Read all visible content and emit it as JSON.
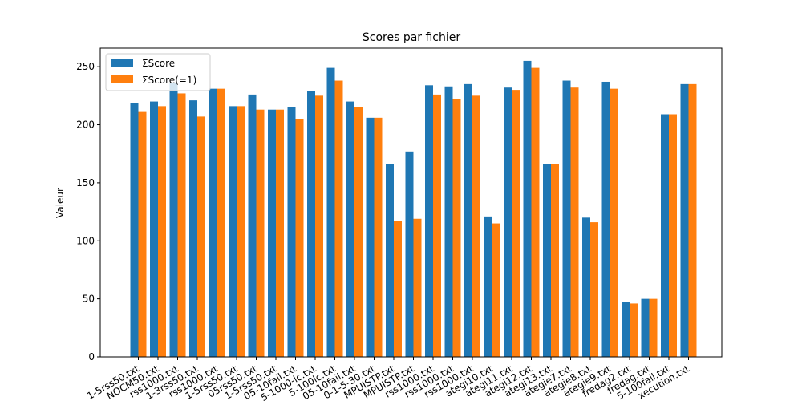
{
  "chart_data": {
    "type": "bar",
    "title": "Scores par fichier",
    "xlabel": "",
    "ylabel": "Valeur",
    "ylim": [
      0,
      266
    ],
    "yticks": [
      0,
      50,
      100,
      150,
      200,
      250
    ],
    "grid": false,
    "legend_position": "top-left",
    "categories": [
      "1-5rss50.txt",
      "NOCM50.txt",
      "rss1000.txt",
      "1-3rss50.txt",
      "rss1000.txt",
      "1-5rss50.txt",
      "05rss50.txt",
      "1-5rss50.txt",
      "05-10fail.txt",
      "5-1000-lc.txt",
      "5-100lc.txt",
      "05-10fail.txt",
      "0-1-5-30.txt",
      "MPUISTP.txt",
      "MPUISTP.txt",
      "rss1000.txt",
      "rss1000.txt",
      "rss1000.txt",
      "ategi10.txt",
      "ategi11.txt",
      "ategi12.txt",
      "ategi13.txt",
      "ategie7.txt",
      "ategie8.txt",
      "ategie9.txt",
      "fredag2.txt",
      "fredag.txt",
      "5-100fail.txt",
      "xecution.txt"
    ],
    "series": [
      {
        "name": "ΣScore",
        "color": "#1f77b4",
        "values": [
          219,
          220,
          236,
          221,
          231,
          216,
          226,
          213,
          215,
          229,
          249,
          220,
          206,
          166,
          177,
          234,
          233,
          235,
          121,
          232,
          255,
          166,
          238,
          120,
          237,
          47,
          50,
          209,
          235
        ]
      },
      {
        "name": "ΣScore(=1)",
        "color": "#ff7f0e",
        "values": [
          211,
          216,
          227,
          207,
          231,
          216,
          213,
          213,
          205,
          225,
          238,
          215,
          206,
          117,
          119,
          226,
          222,
          225,
          115,
          230,
          249,
          166,
          232,
          116,
          231,
          46,
          50,
          209,
          235
        ]
      }
    ]
  }
}
